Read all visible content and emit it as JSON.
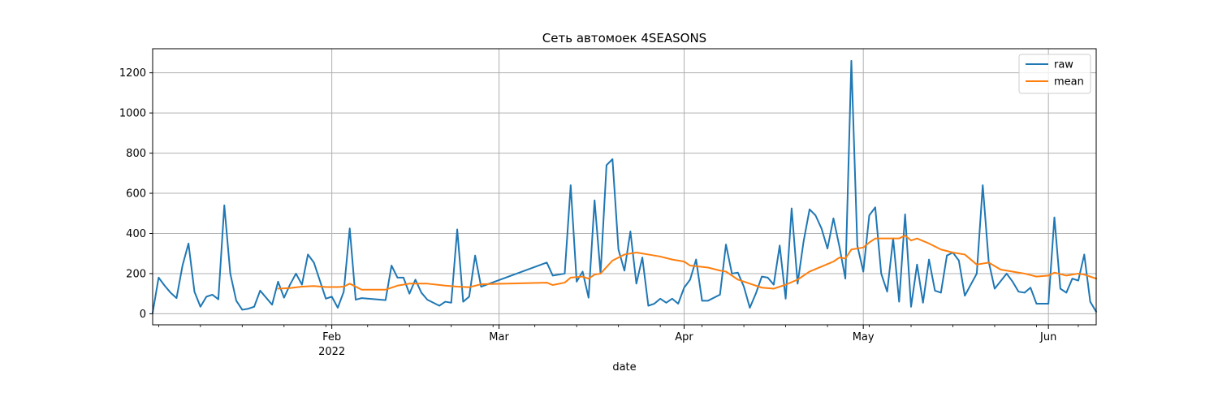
{
  "chart_data": {
    "type": "line",
    "title": "Сеть автомоек 4SEASONS",
    "xlabel": "date",
    "ylabel": "",
    "x_start": "2022-01-02",
    "x_end": "2022-06-09",
    "ylim": [
      -55,
      1320
    ],
    "grid": true,
    "legend": {
      "placement": "top-right"
    },
    "y_ticks": [
      0,
      200,
      400,
      600,
      800,
      1000,
      1200
    ],
    "x_ticks": [
      {
        "date": "2022-02-01",
        "label": "Feb",
        "sublabel": "2022"
      },
      {
        "date": "2022-03-01",
        "label": "Mar",
        "sublabel": ""
      },
      {
        "date": "2022-04-01",
        "label": "Apr",
        "sublabel": ""
      },
      {
        "date": "2022-05-01",
        "label": "May",
        "sublabel": ""
      },
      {
        "date": "2022-06-01",
        "label": "Jun",
        "sublabel": ""
      }
    ],
    "series": [
      {
        "name": "raw",
        "color": "#1f77b4",
        "points": [
          [
            "2022-01-02",
            5
          ],
          [
            "2022-01-03",
            180
          ],
          [
            "2022-01-04",
            140
          ],
          [
            "2022-01-05",
            105
          ],
          [
            "2022-01-06",
            78
          ],
          [
            "2022-01-07",
            240
          ],
          [
            "2022-01-08",
            350
          ],
          [
            "2022-01-09",
            110
          ],
          [
            "2022-01-10",
            35
          ],
          [
            "2022-01-11",
            85
          ],
          [
            "2022-01-12",
            95
          ],
          [
            "2022-01-13",
            72
          ],
          [
            "2022-01-14",
            540
          ],
          [
            "2022-01-15",
            200
          ],
          [
            "2022-01-16",
            65
          ],
          [
            "2022-01-17",
            20
          ],
          [
            "2022-01-18",
            25
          ],
          [
            "2022-01-19",
            35
          ],
          [
            "2022-01-20",
            115
          ],
          [
            "2022-01-22",
            45
          ],
          [
            "2022-01-23",
            160
          ],
          [
            "2022-01-24",
            80
          ],
          [
            "2022-01-25",
            145
          ],
          [
            "2022-01-26",
            200
          ],
          [
            "2022-01-27",
            145
          ],
          [
            "2022-01-28",
            295
          ],
          [
            "2022-01-29",
            255
          ],
          [
            "2022-01-30",
            165
          ],
          [
            "2022-01-31",
            75
          ],
          [
            "2022-02-01",
            85
          ],
          [
            "2022-02-02",
            30
          ],
          [
            "2022-02-03",
            110
          ],
          [
            "2022-02-04",
            425
          ],
          [
            "2022-02-05",
            70
          ],
          [
            "2022-02-06",
            78
          ],
          [
            "2022-02-10",
            68
          ],
          [
            "2022-02-11",
            240
          ],
          [
            "2022-02-12",
            180
          ],
          [
            "2022-02-13",
            180
          ],
          [
            "2022-02-14",
            100
          ],
          [
            "2022-02-15",
            170
          ],
          [
            "2022-02-16",
            105
          ],
          [
            "2022-02-17",
            70
          ],
          [
            "2022-02-19",
            40
          ],
          [
            "2022-02-20",
            60
          ],
          [
            "2022-02-21",
            55
          ],
          [
            "2022-02-22",
            420
          ],
          [
            "2022-02-23",
            60
          ],
          [
            "2022-02-24",
            85
          ],
          [
            "2022-02-25",
            290
          ],
          [
            "2022-02-26",
            135
          ],
          [
            "2022-03-09",
            255
          ],
          [
            "2022-03-10",
            190
          ],
          [
            "2022-03-12",
            200
          ],
          [
            "2022-03-13",
            640
          ],
          [
            "2022-03-14",
            160
          ],
          [
            "2022-03-15",
            210
          ],
          [
            "2022-03-16",
            80
          ],
          [
            "2022-03-17",
            565
          ],
          [
            "2022-03-18",
            200
          ],
          [
            "2022-03-19",
            740
          ],
          [
            "2022-03-20",
            770
          ],
          [
            "2022-03-21",
            320
          ],
          [
            "2022-03-22",
            215
          ],
          [
            "2022-03-23",
            410
          ],
          [
            "2022-03-24",
            150
          ],
          [
            "2022-03-25",
            280
          ],
          [
            "2022-03-26",
            40
          ],
          [
            "2022-03-27",
            50
          ],
          [
            "2022-03-28",
            75
          ],
          [
            "2022-03-29",
            55
          ],
          [
            "2022-03-30",
            75
          ],
          [
            "2022-03-31",
            50
          ],
          [
            "2022-04-01",
            130
          ],
          [
            "2022-04-02",
            170
          ],
          [
            "2022-04-03",
            270
          ],
          [
            "2022-04-04",
            65
          ],
          [
            "2022-04-05",
            65
          ],
          [
            "2022-04-07",
            95
          ],
          [
            "2022-04-08",
            345
          ],
          [
            "2022-04-09",
            200
          ],
          [
            "2022-04-10",
            205
          ],
          [
            "2022-04-11",
            135
          ],
          [
            "2022-04-12",
            30
          ],
          [
            "2022-04-13",
            100
          ],
          [
            "2022-04-14",
            185
          ],
          [
            "2022-04-15",
            180
          ],
          [
            "2022-04-16",
            145
          ],
          [
            "2022-04-17",
            340
          ],
          [
            "2022-04-18",
            75
          ],
          [
            "2022-04-19",
            525
          ],
          [
            "2022-04-20",
            150
          ],
          [
            "2022-04-21",
            360
          ],
          [
            "2022-04-22",
            520
          ],
          [
            "2022-04-23",
            490
          ],
          [
            "2022-04-24",
            425
          ],
          [
            "2022-04-25",
            325
          ],
          [
            "2022-04-26",
            475
          ],
          [
            "2022-04-27",
            335
          ],
          [
            "2022-04-28",
            175
          ],
          [
            "2022-04-29",
            1260
          ],
          [
            "2022-04-30",
            340
          ],
          [
            "2022-05-01",
            210
          ],
          [
            "2022-05-02",
            490
          ],
          [
            "2022-05-03",
            530
          ],
          [
            "2022-05-04",
            200
          ],
          [
            "2022-05-05",
            110
          ],
          [
            "2022-05-06",
            375
          ],
          [
            "2022-05-07",
            60
          ],
          [
            "2022-05-08",
            495
          ],
          [
            "2022-05-09",
            35
          ],
          [
            "2022-05-10",
            245
          ],
          [
            "2022-05-11",
            55
          ],
          [
            "2022-05-12",
            270
          ],
          [
            "2022-05-13",
            115
          ],
          [
            "2022-05-14",
            105
          ],
          [
            "2022-05-15",
            290
          ],
          [
            "2022-05-16",
            305
          ],
          [
            "2022-05-17",
            265
          ],
          [
            "2022-05-18",
            90
          ],
          [
            "2022-05-20",
            200
          ],
          [
            "2022-05-21",
            640
          ],
          [
            "2022-05-22",
            260
          ],
          [
            "2022-05-23",
            125
          ],
          [
            "2022-05-25",
            200
          ],
          [
            "2022-05-26",
            160
          ],
          [
            "2022-05-27",
            110
          ],
          [
            "2022-05-28",
            105
          ],
          [
            "2022-05-29",
            130
          ],
          [
            "2022-05-30",
            50
          ],
          [
            "2022-05-31",
            50
          ],
          [
            "2022-06-01",
            50
          ],
          [
            "2022-06-02",
            480
          ],
          [
            "2022-06-03",
            125
          ],
          [
            "2022-06-04",
            105
          ],
          [
            "2022-06-05",
            175
          ],
          [
            "2022-06-06",
            165
          ],
          [
            "2022-06-07",
            295
          ],
          [
            "2022-06-08",
            60
          ],
          [
            "2022-06-09",
            10
          ]
        ]
      },
      {
        "name": "mean",
        "color": "#ff7f0e",
        "points": [
          [
            "2022-01-23",
            125
          ],
          [
            "2022-01-25",
            128
          ],
          [
            "2022-01-27",
            135
          ],
          [
            "2022-01-29",
            138
          ],
          [
            "2022-01-31",
            133
          ],
          [
            "2022-02-02",
            133
          ],
          [
            "2022-02-03",
            135
          ],
          [
            "2022-02-04",
            150
          ],
          [
            "2022-02-06",
            120
          ],
          [
            "2022-02-10",
            120
          ],
          [
            "2022-02-12",
            140
          ],
          [
            "2022-02-14",
            150
          ],
          [
            "2022-02-17",
            150
          ],
          [
            "2022-02-20",
            140
          ],
          [
            "2022-02-22",
            135
          ],
          [
            "2022-02-24",
            132
          ],
          [
            "2022-02-26",
            147
          ],
          [
            "2022-03-09",
            155
          ],
          [
            "2022-03-10",
            143
          ],
          [
            "2022-03-12",
            155
          ],
          [
            "2022-03-13",
            180
          ],
          [
            "2022-03-15",
            185
          ],
          [
            "2022-03-16",
            175
          ],
          [
            "2022-03-17",
            195
          ],
          [
            "2022-03-18",
            200
          ],
          [
            "2022-03-20",
            265
          ],
          [
            "2022-03-22",
            295
          ],
          [
            "2022-03-24",
            305
          ],
          [
            "2022-03-26",
            295
          ],
          [
            "2022-03-28",
            285
          ],
          [
            "2022-03-30",
            270
          ],
          [
            "2022-04-01",
            260
          ],
          [
            "2022-04-02",
            240
          ],
          [
            "2022-04-05",
            230
          ],
          [
            "2022-04-07",
            215
          ],
          [
            "2022-04-08",
            210
          ],
          [
            "2022-04-10",
            170
          ],
          [
            "2022-04-12",
            150
          ],
          [
            "2022-04-14",
            130
          ],
          [
            "2022-04-16",
            125
          ],
          [
            "2022-04-18",
            145
          ],
          [
            "2022-04-20",
            170
          ],
          [
            "2022-04-22",
            210
          ],
          [
            "2022-04-24",
            235
          ],
          [
            "2022-04-26",
            260
          ],
          [
            "2022-04-27",
            280
          ],
          [
            "2022-04-28",
            275
          ],
          [
            "2022-04-29",
            320
          ],
          [
            "2022-05-01",
            330
          ],
          [
            "2022-05-02",
            355
          ],
          [
            "2022-05-03",
            375
          ],
          [
            "2022-05-05",
            375
          ],
          [
            "2022-05-07",
            375
          ],
          [
            "2022-05-08",
            390
          ],
          [
            "2022-05-09",
            365
          ],
          [
            "2022-05-10",
            375
          ],
          [
            "2022-05-12",
            350
          ],
          [
            "2022-05-14",
            320
          ],
          [
            "2022-05-16",
            305
          ],
          [
            "2022-05-18",
            295
          ],
          [
            "2022-05-20",
            245
          ],
          [
            "2022-05-22",
            255
          ],
          [
            "2022-05-24",
            220
          ],
          [
            "2022-05-26",
            210
          ],
          [
            "2022-05-28",
            200
          ],
          [
            "2022-05-30",
            185
          ],
          [
            "2022-06-01",
            190
          ],
          [
            "2022-06-02",
            205
          ],
          [
            "2022-06-04",
            190
          ],
          [
            "2022-06-06",
            200
          ],
          [
            "2022-06-07",
            195
          ],
          [
            "2022-06-09",
            175
          ]
        ]
      }
    ]
  }
}
